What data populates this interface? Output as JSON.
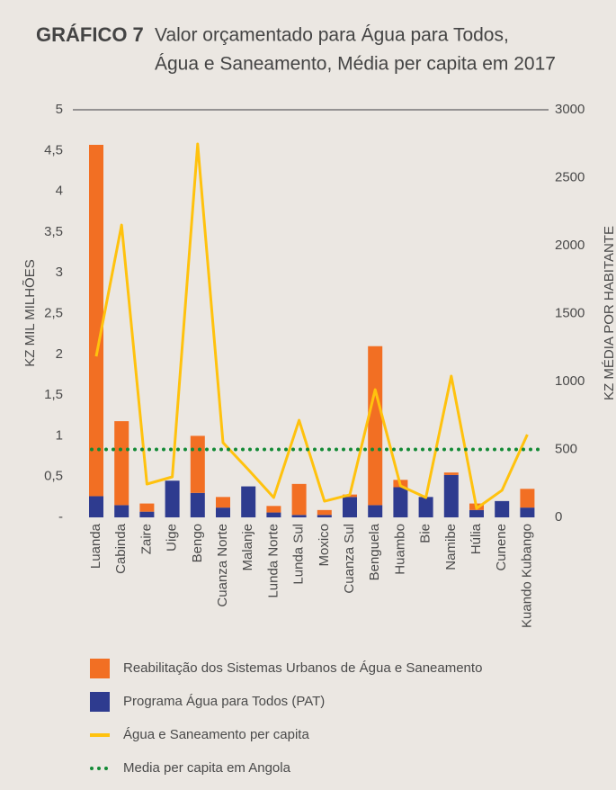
{
  "chart_data": {
    "type": "bar",
    "title": "GRÁFICO 7",
    "subtitle": [
      "Valor orçamentado para Água para Todos,",
      "Água e Saneamento, Média per capita em 2017"
    ],
    "y_label": "KZ MIL MILHÕES",
    "y2_label": "KZ MÉDIA POR HABITANTE",
    "categories": [
      "Luanda",
      "Cabinda",
      "Zaire",
      "Uige",
      "Bengo",
      "Cuanza Norte",
      "Malanje",
      "Lunda Norte",
      "Lunda Sul",
      "Moxico",
      "Cuanza Sul",
      "Benguela",
      "Huambo",
      "Bie",
      "Namibe",
      "Húlia",
      "Cunene",
      "Kuando Kubango"
    ],
    "ylim": [
      0,
      5
    ],
    "yticks": [
      {
        "value": 0,
        "label": "-"
      },
      {
        "value": 0.5,
        "label": "0,5"
      },
      1,
      {
        "value": 1.5,
        "label": "1,5"
      },
      2,
      {
        "value": 2.5,
        "label": "2,5"
      },
      3,
      {
        "value": 3.5,
        "label": "3,5"
      },
      4,
      {
        "value": 4.5,
        "label": "4,5"
      },
      5
    ],
    "y2lim": [
      0,
      3000
    ],
    "y2ticks": [
      0,
      500,
      1000,
      1500,
      2000,
      2500,
      3000
    ],
    "series": [
      {
        "name": "Programa Água para Todos (PAT)",
        "type": "bar",
        "color": "#2e3b8f",
        "values": [
          0.26,
          0.15,
          0.07,
          0.45,
          0.3,
          0.12,
          0.38,
          0.06,
          0.03,
          0.03,
          0.25,
          0.15,
          0.37,
          0.25,
          0.52,
          0.09,
          0.2,
          0.12
        ]
      },
      {
        "name": "Reabilitação dos Sistemas Urbanos de Água e Saneamento",
        "type": "bar",
        "color": "#f26f23",
        "values": [
          4.31,
          1.03,
          0.1,
          0,
          0.7,
          0.13,
          0,
          0.08,
          0.38,
          0.06,
          0.03,
          1.95,
          0.09,
          0,
          0.03,
          0.08,
          0,
          0.23
        ]
      },
      {
        "name": "Água e Saneamento per capita",
        "type": "line",
        "axis": "y2",
        "color": "#ffc20e",
        "values": [
          1185,
          2152,
          245,
          298,
          2748,
          550,
          351,
          146,
          715,
          119,
          166,
          940,
          232,
          146,
          1040,
          66,
          199,
          609
        ]
      }
    ],
    "average": {
      "name": "Media per capita em Angola",
      "axis": "y2",
      "color": "#138a36",
      "value": 500
    }
  }
}
